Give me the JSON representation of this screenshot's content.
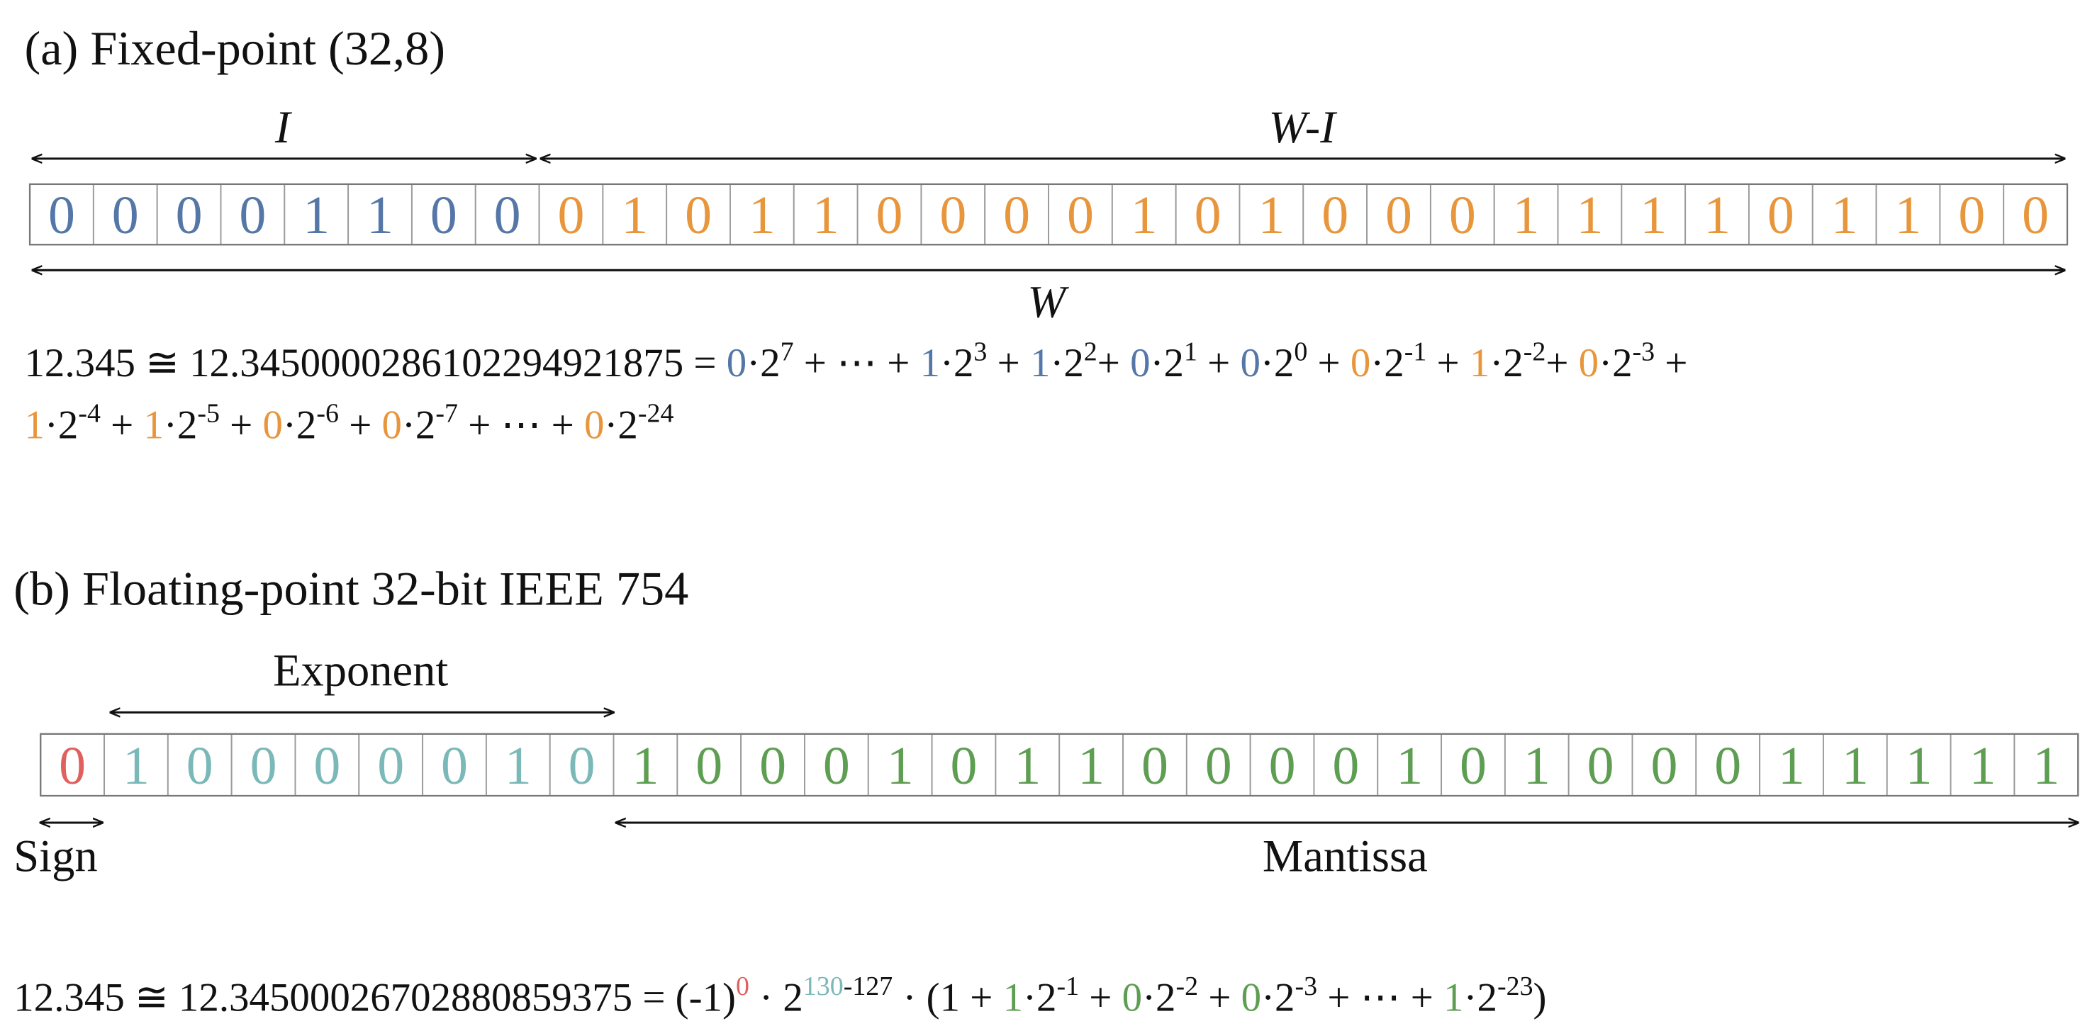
{
  "part_a": {
    "title": "(a) Fixed-point (32,8)",
    "integer_label": "I",
    "fraction_label": "W-I",
    "width_label": "W",
    "integer_color": "#5577a8",
    "fraction_color": "#e8963c",
    "integer_bits": [
      0,
      0,
      0,
      0,
      1,
      1,
      0,
      0
    ],
    "fraction_bits": [
      0,
      1,
      0,
      1,
      1,
      0,
      0,
      0,
      0,
      1,
      0,
      1,
      0,
      0,
      0,
      1,
      1,
      1,
      1,
      0,
      1,
      1,
      0,
      0
    ],
    "equation": [
      [
        {
          "text": "12.345 ≅ 12.3450000286102294921875 = "
        },
        {
          "text": "0",
          "color": "#5577a8"
        },
        {
          "text": "·2"
        },
        {
          "sup": "7"
        },
        {
          "text": " + ⋯ + "
        },
        {
          "text": "1",
          "color": "#5577a8"
        },
        {
          "text": "·2"
        },
        {
          "sup": "3"
        },
        {
          "text": " + "
        },
        {
          "text": "1",
          "color": "#5577a8"
        },
        {
          "text": "·2"
        },
        {
          "sup": "2"
        },
        {
          "text": "+ "
        },
        {
          "text": "0",
          "color": "#5577a8"
        },
        {
          "text": "·2"
        },
        {
          "sup": "1"
        },
        {
          "text": " + "
        },
        {
          "text": "0",
          "color": "#5577a8"
        },
        {
          "text": "·2"
        },
        {
          "sup": "0"
        },
        {
          "text": " + "
        },
        {
          "text": "0",
          "color": "#e8963c"
        },
        {
          "text": "·2"
        },
        {
          "sup": "-1"
        },
        {
          "text": " + "
        },
        {
          "text": "1",
          "color": "#e8963c"
        },
        {
          "text": "·2"
        },
        {
          "sup": "-2"
        },
        {
          "text": "+ "
        },
        {
          "text": "0",
          "color": "#e8963c"
        },
        {
          "text": "·2"
        },
        {
          "sup": "-3"
        },
        {
          "text": " +"
        }
      ],
      [
        {
          "text": "1",
          "color": "#e8963c"
        },
        {
          "text": "·2"
        },
        {
          "sup": "-4"
        },
        {
          "text": " + "
        },
        {
          "text": "1",
          "color": "#e8963c"
        },
        {
          "text": "·2"
        },
        {
          "sup": "-5"
        },
        {
          "text": " + "
        },
        {
          "text": "0",
          "color": "#e8963c"
        },
        {
          "text": "·2"
        },
        {
          "sup": "-6"
        },
        {
          "text": " + "
        },
        {
          "text": "0",
          "color": "#e8963c"
        },
        {
          "text": "·2"
        },
        {
          "sup": "-7"
        },
        {
          "text": " + ⋯ + "
        },
        {
          "text": "0",
          "color": "#e8963c"
        },
        {
          "text": "·2"
        },
        {
          "sup": "-24"
        }
      ]
    ]
  },
  "part_b": {
    "title": "(b) Floating-point 32-bit IEEE 754",
    "sign_label": "Sign",
    "exponent_label": "Exponent",
    "mantissa_label": "Mantissa",
    "sign_color": "#e06060",
    "exponent_color": "#7bb8b8",
    "mantissa_color": "#5e9e52",
    "sign_bits": [
      0
    ],
    "exponent_bits": [
      1,
      0,
      0,
      0,
      0,
      0,
      1,
      0
    ],
    "mantissa_bits": [
      1,
      0,
      0,
      0,
      1,
      0,
      1,
      1,
      0,
      0,
      0,
      0,
      1,
      0,
      1,
      0,
      0,
      0,
      1,
      1,
      1,
      1,
      1
    ],
    "equation": [
      [
        {
          "text": "12.345 ≅ 12.34500026702880859375 = (-1)"
        },
        {
          "sup": "0",
          "color": "#e06060"
        },
        {
          "text": " · 2"
        },
        {
          "sup": "130",
          "color": "#7bb8b8"
        },
        {
          "sup": "-127"
        },
        {
          "text": " · (1 + "
        },
        {
          "text": "1",
          "color": "#5e9e52"
        },
        {
          "text": "·2"
        },
        {
          "sup": "-1"
        },
        {
          "text": " + "
        },
        {
          "text": "0",
          "color": "#5e9e52"
        },
        {
          "text": "·2"
        },
        {
          "sup": "-2"
        },
        {
          "text": " + "
        },
        {
          "text": "0",
          "color": "#5e9e52"
        },
        {
          "text": "·2"
        },
        {
          "sup": "-3"
        },
        {
          "text": " + ⋯ + "
        },
        {
          "text": "1",
          "color": "#5e9e52"
        },
        {
          "text": "·2"
        },
        {
          "sup": "-23"
        },
        {
          "text": ")"
        }
      ]
    ]
  }
}
